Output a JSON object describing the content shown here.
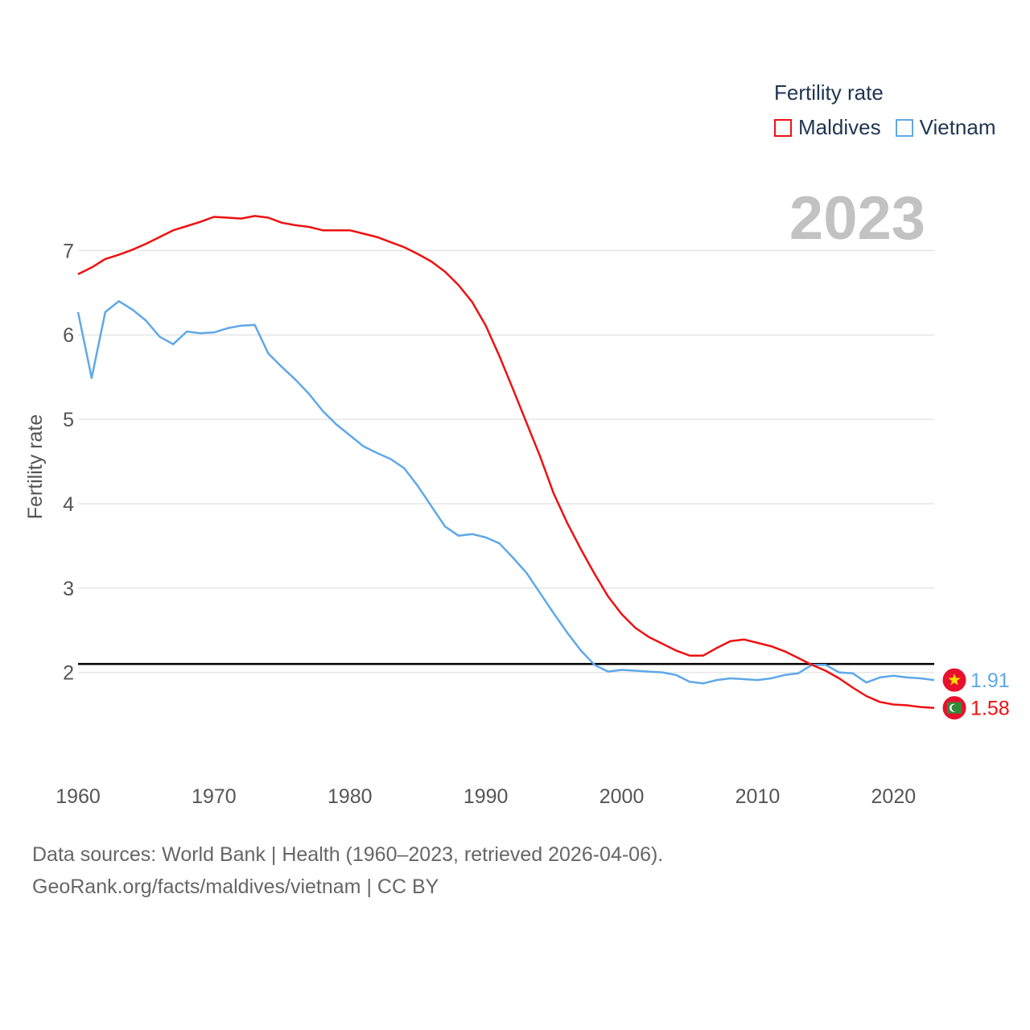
{
  "legend": {
    "title": "Fertility rate",
    "series": [
      {
        "name": "Maldives",
        "color": "#ee1111"
      },
      {
        "name": "Vietnam",
        "color": "#5fa8e8"
      }
    ]
  },
  "year_label": "2023",
  "footer": {
    "line1": "Data sources: World Bank | Health (1960–2023, retrieved 2026-04-06).",
    "line2": "GeoRank.org/facts/maldives/vietnam | CC BY"
  },
  "chart_data": {
    "type": "line",
    "title": "Fertility rate",
    "ylabel": "Fertility rate",
    "xlabel": "",
    "xlim": [
      1960,
      2023
    ],
    "ylim": [
      1.1,
      7.7
    ],
    "x_ticks": [
      1960,
      1970,
      1980,
      1990,
      2000,
      2010,
      2020
    ],
    "y_ticks": [
      2,
      3,
      4,
      5,
      6,
      7
    ],
    "reference_line": 2.1,
    "years": [
      1960,
      1961,
      1962,
      1963,
      1964,
      1965,
      1966,
      1967,
      1968,
      1969,
      1970,
      1971,
      1972,
      1973,
      1974,
      1975,
      1976,
      1977,
      1978,
      1979,
      1980,
      1981,
      1982,
      1983,
      1984,
      1985,
      1986,
      1987,
      1988,
      1989,
      1990,
      1991,
      1992,
      1993,
      1994,
      1995,
      1996,
      1997,
      1998,
      1999,
      2000,
      2001,
      2002,
      2003,
      2004,
      2005,
      2006,
      2007,
      2008,
      2009,
      2010,
      2011,
      2012,
      2013,
      2014,
      2015,
      2016,
      2017,
      2018,
      2019,
      2020,
      2021,
      2022,
      2023
    ],
    "series": [
      {
        "name": "Maldives",
        "color": "#ee1111",
        "end_label": "1.58",
        "values": [
          6.72,
          6.8,
          6.9,
          6.95,
          7.01,
          7.08,
          7.16,
          7.24,
          7.29,
          7.34,
          7.4,
          7.39,
          7.38,
          7.41,
          7.39,
          7.33,
          7.3,
          7.28,
          7.24,
          7.24,
          7.24,
          7.2,
          7.16,
          7.1,
          7.04,
          6.96,
          6.87,
          6.75,
          6.59,
          6.39,
          6.11,
          5.75,
          5.36,
          4.96,
          4.56,
          4.12,
          3.77,
          3.46,
          3.17,
          2.9,
          2.69,
          2.53,
          2.42,
          2.34,
          2.26,
          2.2,
          2.2,
          2.29,
          2.37,
          2.39,
          2.35,
          2.31,
          2.25,
          2.17,
          2.09,
          2.02,
          1.93,
          1.82,
          1.72,
          1.65,
          1.62,
          1.61,
          1.59,
          1.58
        ]
      },
      {
        "name": "Vietnam",
        "color": "#5fa8e8",
        "end_label": "1.91",
        "values": [
          6.27,
          5.49,
          6.27,
          6.4,
          6.3,
          6.17,
          5.98,
          5.89,
          6.04,
          6.02,
          6.03,
          6.08,
          6.11,
          6.12,
          5.78,
          5.62,
          5.47,
          5.3,
          5.1,
          4.94,
          4.81,
          4.68,
          4.6,
          4.53,
          4.42,
          4.21,
          3.97,
          3.73,
          3.62,
          3.64,
          3.6,
          3.53,
          3.36,
          3.18,
          2.94,
          2.7,
          2.47,
          2.26,
          2.09,
          2.01,
          2.03,
          2.02,
          2.01,
          2.0,
          1.97,
          1.89,
          1.87,
          1.91,
          1.93,
          1.92,
          1.91,
          1.93,
          1.97,
          1.99,
          2.09,
          2.09,
          2.0,
          1.99,
          1.88,
          1.94,
          1.96,
          1.94,
          1.93,
          1.91
        ]
      }
    ]
  }
}
